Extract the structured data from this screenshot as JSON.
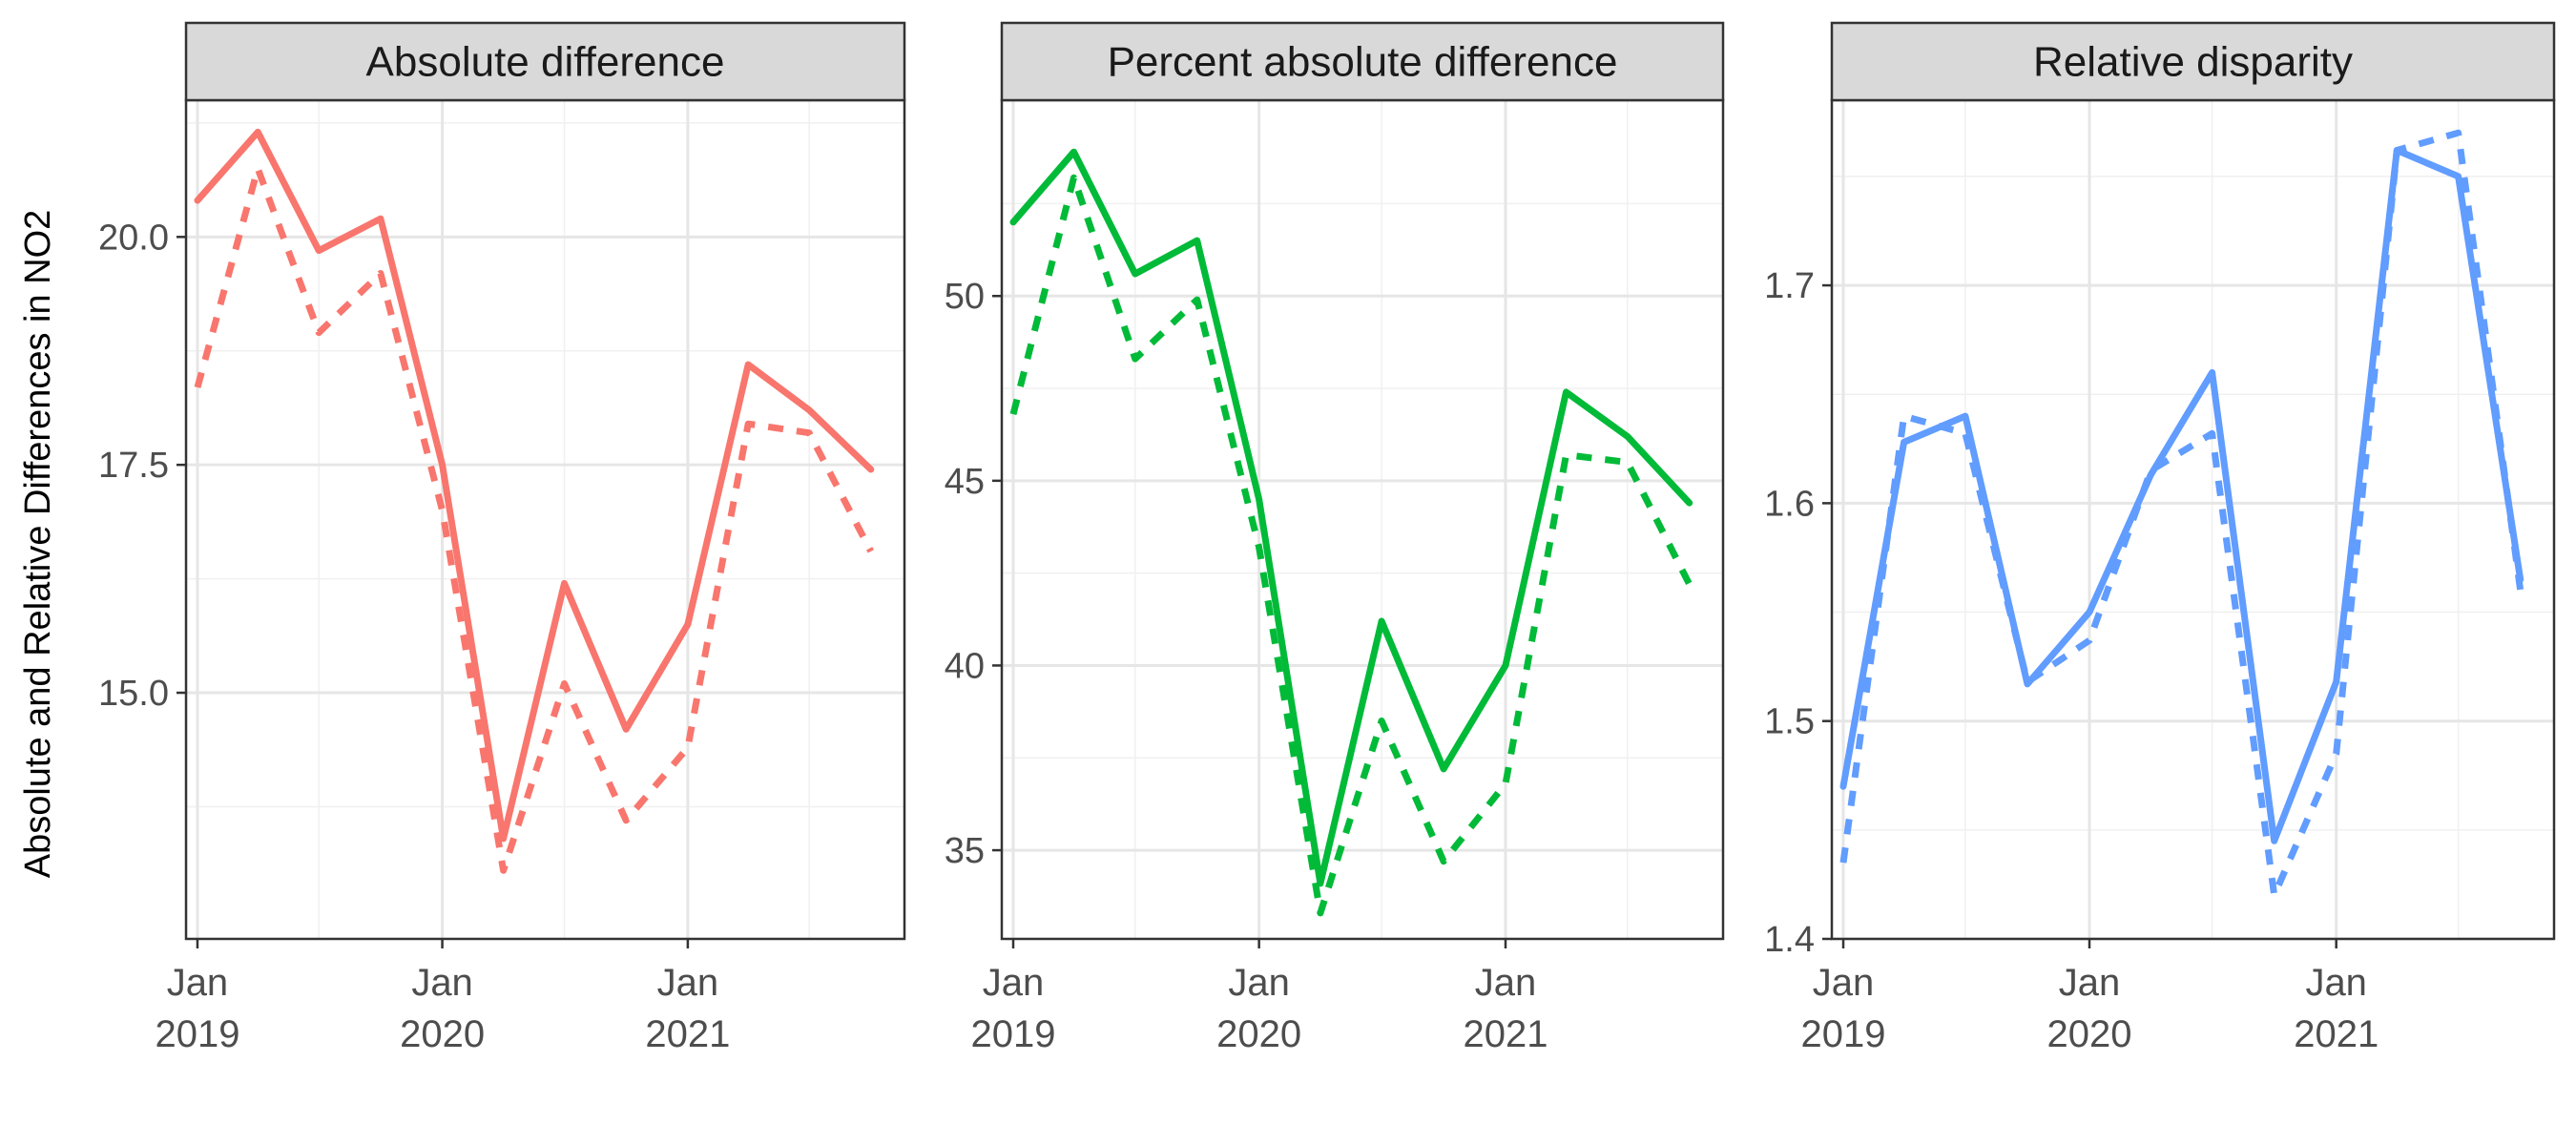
{
  "figure": {
    "ylabel": "Absolute and Relative Differences in NO2"
  },
  "chart_data": [
    {
      "type": "line",
      "title": "Absolute difference",
      "color": "#F8766D",
      "x": [
        "2019-01",
        "2019-04",
        "2019-07",
        "2019-10",
        "2020-01",
        "2020-04",
        "2020-07",
        "2020-10",
        "2021-01",
        "2021-04",
        "2021-07",
        "2021-10"
      ],
      "series": [
        {
          "linetype": "solid",
          "values": [
            20.4,
            21.15,
            19.85,
            20.2,
            17.5,
            13.4,
            16.2,
            14.6,
            15.75,
            18.6,
            18.1,
            17.45
          ]
        },
        {
          "linetype": "dashed",
          "values": [
            18.35,
            20.75,
            18.95,
            19.6,
            17.0,
            13.05,
            15.1,
            13.6,
            14.4,
            17.95,
            17.85,
            16.55
          ]
        }
      ],
      "ylim": [
        12.3,
        21.5
      ],
      "yticks": [
        15.0,
        17.5,
        20.0
      ],
      "ytick_labels": [
        "15.0",
        "17.5",
        "20.0"
      ],
      "xtick_dates": [
        "2019-01",
        "2020-01",
        "2021-01"
      ],
      "xtick_labels": [
        [
          "Jan",
          "2019"
        ],
        [
          "Jan",
          "2020"
        ],
        [
          "Jan",
          "2021"
        ]
      ],
      "grid": true
    },
    {
      "type": "line",
      "title": "Percent absolute difference",
      "color": "#00BA38",
      "x": [
        "2019-01",
        "2019-04",
        "2019-07",
        "2019-10",
        "2020-01",
        "2020-04",
        "2020-07",
        "2020-10",
        "2021-01",
        "2021-04",
        "2021-07",
        "2021-10"
      ],
      "series": [
        {
          "linetype": "solid",
          "values": [
            52.0,
            53.9,
            50.6,
            51.5,
            44.5,
            34.1,
            41.2,
            37.2,
            40.0,
            47.4,
            46.2,
            44.4
          ]
        },
        {
          "linetype": "dashed",
          "values": [
            46.8,
            53.2,
            48.3,
            49.9,
            43.2,
            33.3,
            38.5,
            34.7,
            36.8,
            45.7,
            45.5,
            42.2
          ]
        }
      ],
      "ylim": [
        32.6,
        55.3
      ],
      "yticks": [
        35,
        40,
        45,
        50
      ],
      "ytick_labels": [
        "35",
        "40",
        "45",
        "50"
      ],
      "xtick_dates": [
        "2019-01",
        "2020-01",
        "2021-01"
      ],
      "xtick_labels": [
        [
          "Jan",
          "2019"
        ],
        [
          "Jan",
          "2020"
        ],
        [
          "Jan",
          "2021"
        ]
      ],
      "grid": true
    },
    {
      "type": "line",
      "title": "Relative disparity",
      "color": "#619CFF",
      "x": [
        "2019-01",
        "2019-04",
        "2019-07",
        "2019-10",
        "2020-01",
        "2020-04",
        "2020-07",
        "2020-10",
        "2021-01",
        "2021-04",
        "2021-07",
        "2021-10"
      ],
      "series": [
        {
          "linetype": "solid",
          "values": [
            1.47,
            1.628,
            1.64,
            1.517,
            1.55,
            1.613,
            1.66,
            1.445,
            1.518,
            1.762,
            1.75,
            1.565
          ]
        },
        {
          "linetype": "dashed",
          "values": [
            1.435,
            1.64,
            1.632,
            1.518,
            1.537,
            1.615,
            1.632,
            1.42,
            1.485,
            1.762,
            1.77,
            1.56
          ]
        }
      ],
      "ylim": [
        1.4,
        1.785
      ],
      "yticks": [
        1.4,
        1.5,
        1.6,
        1.7
      ],
      "ytick_labels": [
        "1.4",
        "1.5",
        "1.6",
        "1.7"
      ],
      "xtick_dates": [
        "2019-01",
        "2020-01",
        "2021-01"
      ],
      "xtick_labels": [
        [
          "Jan",
          "2019"
        ],
        [
          "Jan",
          "2020"
        ],
        [
          "Jan",
          "2021"
        ]
      ],
      "grid": true
    }
  ]
}
